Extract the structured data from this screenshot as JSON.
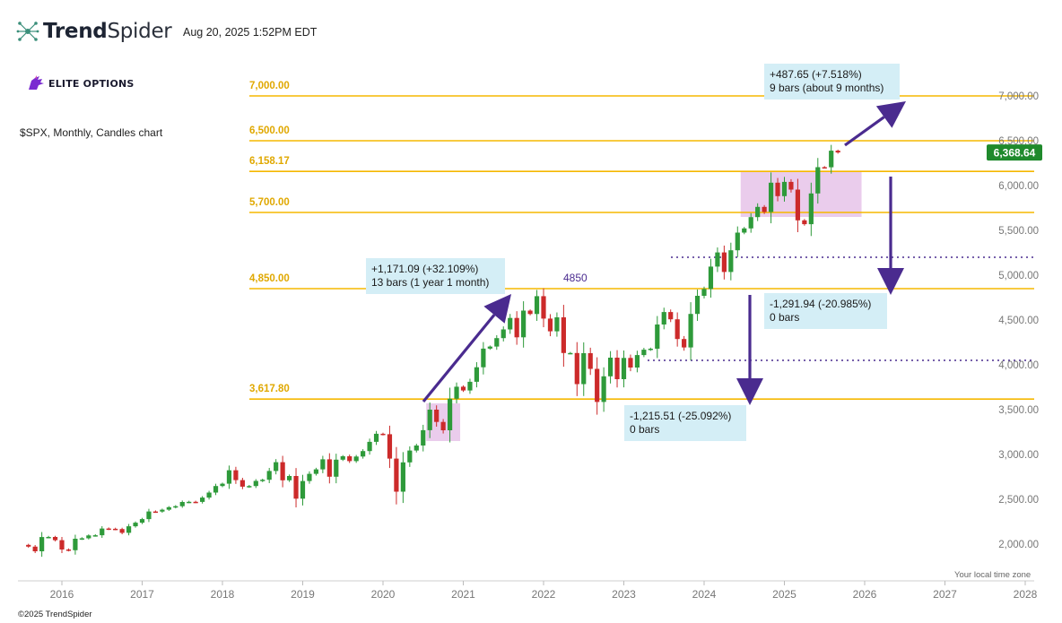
{
  "header": {
    "logo_bold": "Trend",
    "logo_light": "Spider",
    "timestamp": "Aug 20, 2025 1:52PM EDT",
    "brand": "ELITE OPTIONS",
    "chart_description": "$SPX, Monthly, Candles chart",
    "copyright": "©2025 TrendSpider",
    "timezone_note": "Your local time zone"
  },
  "colors": {
    "up": "#2e9a3a",
    "down": "#cc2a2a",
    "level_line": "#f5b800",
    "level_label": "#e0a800",
    "arrow": "#4a2b8f",
    "callout_bg": "#d4eef6",
    "zone_bg": "#e8c7ea",
    "price_badge": "#1f8a2c",
    "dotted": "#4a2b8f"
  },
  "chart_data": {
    "type": "candlestick",
    "title": "$SPX, Monthly, Candles chart",
    "ylim": [
      1800,
      7200
    ],
    "y_ticks": [
      "2,000.00",
      "2,500.00",
      "3,000.00",
      "3,500.00",
      "4,000.00",
      "4,500.00",
      "5,000.00",
      "5,500.00",
      "6,000.00",
      "6,500.00",
      "7,000.00"
    ],
    "y_tick_values": [
      2000,
      2500,
      3000,
      3500,
      4000,
      4500,
      5000,
      5500,
      6000,
      6500,
      7000
    ],
    "x_ticks": [
      "2016",
      "2017",
      "2018",
      "2019",
      "2020",
      "2021",
      "2022",
      "2023",
      "2024",
      "2025",
      "2026",
      "2027",
      "2028"
    ],
    "start": "2015-08",
    "closes": [
      1972,
      1920,
      2079,
      2080,
      2044,
      1940,
      1932,
      2060,
      2065,
      2097,
      2099,
      2174,
      2171,
      2168,
      2126,
      2199,
      2239,
      2279,
      2364,
      2363,
      2384,
      2412,
      2423,
      2470,
      2472,
      2471,
      2519,
      2575,
      2648,
      2674,
      2824,
      2714,
      2641,
      2648,
      2705,
      2718,
      2816,
      2914,
      2712,
      2760,
      2507,
      2704,
      2784,
      2834,
      2946,
      2752,
      2942,
      2980,
      2926,
      2977,
      3038,
      3141,
      3231,
      3226,
      2954,
      2585,
      2912,
      3044,
      3100,
      3271,
      3500,
      3363,
      3270,
      3622,
      3756,
      3714,
      3811,
      3973,
      4181,
      4204,
      4298,
      4395,
      4523,
      4307,
      4605,
      4567,
      4766,
      4516,
      4374,
      4530,
      4132,
      4132,
      3785,
      4130,
      3955,
      3586,
      3872,
      4080,
      3840,
      4077,
      3970,
      4109,
      4169,
      4180,
      4450,
      4589,
      4508,
      4288,
      4194,
      4568,
      4770,
      4846,
      5096,
      5254,
      5036,
      5278,
      5475,
      5522,
      5648,
      5762,
      5705,
      6032,
      5882,
      6041,
      5955,
      5612,
      5569,
      5912,
      6205,
      6204,
      6389,
      6369
    ],
    "levels": [
      {
        "value": 7000,
        "label": "7,000.00"
      },
      {
        "value": 6500,
        "label": "6,500.00"
      },
      {
        "value": 6158.17,
        "label": "6,158.17"
      },
      {
        "value": 5700,
        "label": "5,700.00"
      },
      {
        "value": 4850,
        "label": "4,850.00"
      },
      {
        "value": 3617.8,
        "label": "3,617.80"
      }
    ],
    "dotted_levels": [
      5200,
      4050
    ],
    "level_annotation": {
      "text": "4850",
      "value": 4850
    },
    "last_price": {
      "value": 6368.64,
      "label": "6,368.64"
    },
    "callouts": [
      {
        "line1": "+487.65 (+7.518%)",
        "line2": "9 bars (about 9 months)"
      },
      {
        "line1": "+1,171.09 (+32.109%)",
        "line2": "13 bars (1 year 1 month)"
      },
      {
        "line1": "-1,291.94 (-20.985%)",
        "line2": "0 bars"
      },
      {
        "line1": "-1,215.51 (-25.092%)",
        "line2": "0 bars"
      }
    ],
    "zones": [
      {
        "from": "2020-08",
        "to": "2020-12",
        "low": 3150,
        "high": 3570
      },
      {
        "from": "2024-07",
        "to": "2025-12",
        "low": 5650,
        "high": 6160
      }
    ]
  }
}
